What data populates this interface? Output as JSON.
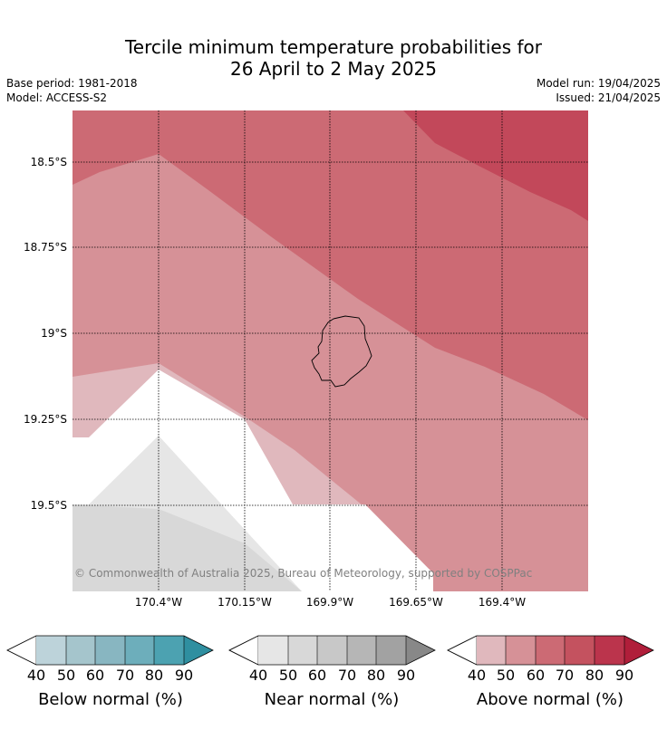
{
  "header": {
    "title_line1": "Tercile minimum temperature probabilities for",
    "title_line2": "26 April to 2 May 2025",
    "base_period": "Base period: 1981-2018",
    "model": "Model: ACCESS-S2",
    "model_run": "Model run: 19/04/2025",
    "issued": "Issued: 21/04/2025"
  },
  "map": {
    "lat_labels": [
      "18.5°S",
      "18.75°S",
      "19°S",
      "19.25°S",
      "19.5°S"
    ],
    "lon_labels": [
      "170.4°W",
      "170.15°W",
      "169.9°W",
      "169.65°W",
      "169.4°W"
    ],
    "copyright": "© Commonwealth of Australia 2025, Bureau of Meteorology, supported by COSPPac",
    "colors": {
      "above_40": "#e0b8bd",
      "above_50": "#d69197",
      "above_60": "#cc6a74",
      "above_70": "#c2485a",
      "near_40": "#e6e6e6",
      "near_50": "#d8d8d8",
      "white": "#ffffff"
    }
  },
  "colorbars": [
    {
      "name": "below",
      "title": "Below normal (%)",
      "ticks": [
        "40",
        "50",
        "60",
        "70",
        "80",
        "90"
      ],
      "colors": [
        "#bdd3da",
        "#a5c5cc",
        "#88b6c1",
        "#6daebb",
        "#4ca2b1",
        "#2f8fa0"
      ]
    },
    {
      "name": "near",
      "title": "Near normal (%)",
      "ticks": [
        "40",
        "50",
        "60",
        "70",
        "80",
        "90"
      ],
      "colors": [
        "#e6e6e6",
        "#d8d8d8",
        "#c8c8c8",
        "#b6b6b6",
        "#a2a2a2",
        "#888888"
      ]
    },
    {
      "name": "above",
      "title": "Above normal (%)",
      "ticks": [
        "40",
        "50",
        "60",
        "70",
        "80",
        "90"
      ],
      "colors": [
        "#e0b8bd",
        "#d69197",
        "#cc6a74",
        "#c4525f",
        "#bb344c",
        "#b01e3a"
      ]
    }
  ]
}
